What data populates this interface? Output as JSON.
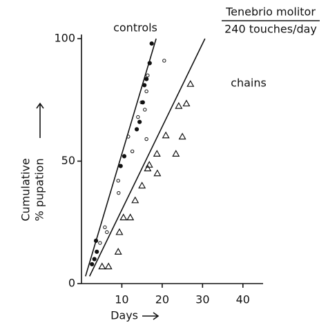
{
  "chart_data": {
    "type": "scatter",
    "title": "Tenebrio molitor",
    "subtitle": "240 touches/day",
    "xlabel": "Days",
    "ylabel": [
      "Cumulative",
      "% pupation"
    ],
    "annotations": [
      "controls",
      "chains"
    ],
    "xlim": [
      0,
      45
    ],
    "ylim": [
      0,
      100
    ],
    "xticks": [
      10,
      20,
      30,
      40
    ],
    "yticks": [
      0,
      50,
      100
    ],
    "series": [
      {
        "marker": "filled",
        "color": "#111111",
        "x": [
          2.6,
          3.2,
          3.8,
          3.6,
          9.7,
          10.6,
          13.7,
          14.4,
          15.2,
          15.6,
          16.1,
          16.9,
          17.4
        ],
        "values": [
          7.9,
          10,
          13,
          17.5,
          48,
          52,
          63,
          66,
          74,
          81,
          83.5,
          90,
          98
        ]
      },
      {
        "marker": "open",
        "color": "#111111",
        "x": [
          4.6,
          5.8,
          6.3,
          9.1,
          9.2,
          11.6,
          12.6,
          14,
          14.9,
          15.7,
          16.1,
          16.4,
          16.1,
          20.5
        ],
        "values": [
          16.6,
          23,
          21,
          42,
          37,
          60,
          54,
          68,
          74,
          71,
          78.5,
          85,
          59,
          91
        ]
      },
      {
        "marker": "triangle",
        "color": "#111111",
        "x": [
          5.1,
          6.7,
          9.1,
          9.4,
          10.4,
          12.1,
          13.3,
          15,
          16.4,
          16.8,
          18.7,
          20.9,
          18.8,
          23.4,
          24.1,
          25,
          26,
          27
        ],
        "values": [
          7,
          7,
          13,
          21,
          27,
          27,
          34,
          40,
          47,
          48.5,
          53,
          60.5,
          45,
          53,
          72.5,
          60,
          73.5,
          81.5
        ]
      }
    ],
    "lines": [
      {
        "x": [
          1,
          18.5
        ],
        "values": [
          3,
          100
        ]
      },
      {
        "x": [
          2,
          30.6
        ],
        "values": [
          3,
          100
        ]
      }
    ]
  }
}
